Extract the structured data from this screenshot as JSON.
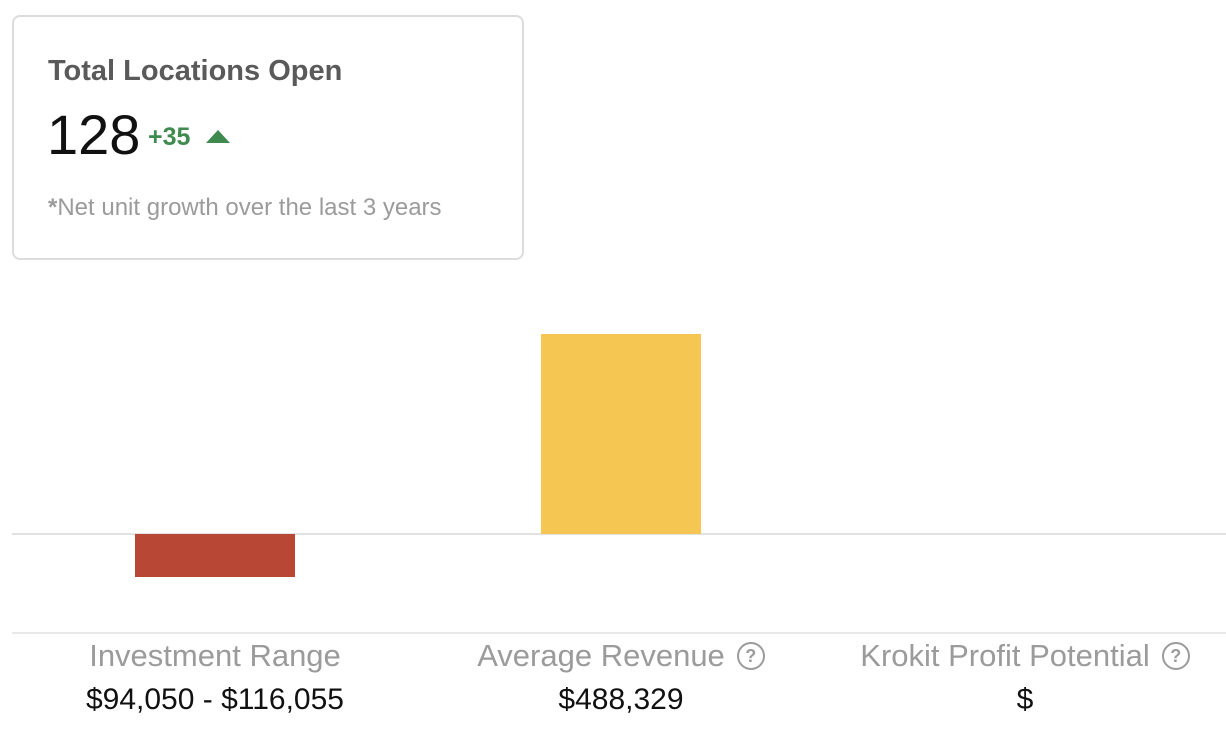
{
  "card": {
    "title": "Total Locations Open",
    "count": "128",
    "delta": "+35",
    "delta_direction": "up",
    "delta_color": "#3f8a4e",
    "footnote_star": "*",
    "footnote": "Net unit growth over the last 3 years"
  },
  "metrics": [
    {
      "label": "Investment Range",
      "value": "$94,050 - $116,055",
      "has_help_icon": false
    },
    {
      "label": "Average Revenue",
      "value": "$488,329",
      "has_help_icon": true,
      "help_icon": "question-circle-icon"
    },
    {
      "label": "Krokit Profit Potential",
      "value": "$",
      "has_help_icon": true,
      "help_icon": "question-circle-icon"
    }
  ],
  "chart_data": {
    "type": "bar",
    "categories": [
      "Investment Range",
      "Average Revenue",
      "Krokit Profit Potential"
    ],
    "values": [
      -105052,
      488329,
      0
    ],
    "colors": [
      "#b84735",
      "#f5c652",
      "#cccccc"
    ],
    "ylim": [
      -200000,
      640000
    ],
    "baseline": 0,
    "grid": false
  }
}
